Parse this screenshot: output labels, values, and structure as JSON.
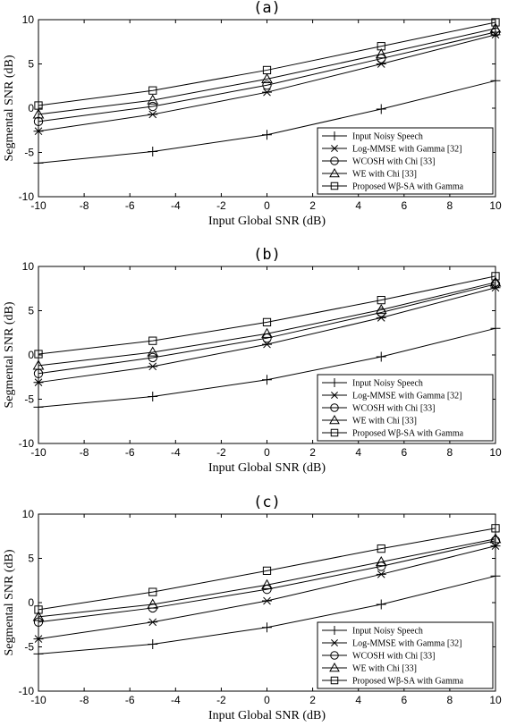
{
  "chart_data": [
    {
      "type": "line",
      "panel": "(a)",
      "title": "(a)",
      "xlabel": "Input Global SNR (dB)",
      "ylabel": "Segmental SNR (dB)",
      "x": [
        -10,
        -5,
        0,
        5,
        10
      ],
      "xlim": [
        -10,
        10
      ],
      "ylim": [
        -10,
        10
      ],
      "xticks": [
        -10,
        -8,
        -6,
        -4,
        -2,
        0,
        2,
        4,
        6,
        8,
        10
      ],
      "yticks": [
        -10,
        -5,
        0,
        5,
        10
      ],
      "legend_position": "bottom-right",
      "series": [
        {
          "name": "Input Noisy Speech",
          "marker": "plus",
          "values": [
            -6.2,
            -4.9,
            -3.0,
            -0.1,
            3.1
          ]
        },
        {
          "name": "Log-MMSE with Gamma [32]",
          "marker": "asterisk",
          "values": [
            -2.6,
            -0.7,
            1.8,
            5.0,
            8.3
          ]
        },
        {
          "name": "WCOSH with Chi [33]",
          "marker": "circle",
          "values": [
            -1.5,
            0.2,
            2.6,
            5.6,
            8.6
          ]
        },
        {
          "name": "WE with Chi [33]",
          "marker": "triangle",
          "values": [
            -0.7,
            0.9,
            3.3,
            6.1,
            9.0
          ]
        },
        {
          "name": "Proposed Wβ-SA with Gamma",
          "marker": "square",
          "values": [
            0.3,
            2.0,
            4.3,
            7.0,
            9.7
          ]
        }
      ]
    },
    {
      "type": "line",
      "panel": "(b)",
      "title": "(b)",
      "xlabel": "Input Global SNR (dB)",
      "ylabel": "Segmental SNR (dB)",
      "x": [
        -10,
        -5,
        0,
        5,
        10
      ],
      "xlim": [
        -10,
        10
      ],
      "ylim": [
        -10,
        10
      ],
      "xticks": [
        -10,
        -8,
        -6,
        -4,
        -2,
        0,
        2,
        4,
        6,
        8,
        10
      ],
      "yticks": [
        -10,
        -5,
        0,
        5,
        10
      ],
      "legend_position": "bottom-right",
      "series": [
        {
          "name": "Input Noisy Speech",
          "marker": "plus",
          "values": [
            -5.9,
            -4.7,
            -2.8,
            -0.2,
            3.0
          ]
        },
        {
          "name": "Log-MMSE with Gamma [32]",
          "marker": "asterisk",
          "values": [
            -3.1,
            -1.3,
            1.2,
            4.2,
            7.6
          ]
        },
        {
          "name": "WCOSH with Chi [33]",
          "marker": "circle",
          "values": [
            -2.1,
            -0.3,
            1.9,
            4.8,
            8.0
          ]
        },
        {
          "name": "WE with Chi [33]",
          "marker": "triangle",
          "values": [
            -1.2,
            0.3,
            2.4,
            5.1,
            8.2
          ]
        },
        {
          "name": "Proposed Wβ-SA with Gamma",
          "marker": "square",
          "values": [
            0.1,
            1.6,
            3.7,
            6.2,
            8.9
          ]
        }
      ]
    },
    {
      "type": "line",
      "panel": "(c)",
      "title": "(c)",
      "xlabel": "Input Global SNR (dB)",
      "ylabel": "Segmental SNR (dB)",
      "x": [
        -10,
        -5,
        0,
        5,
        10
      ],
      "xlim": [
        -10,
        10
      ],
      "ylim": [
        -10,
        10
      ],
      "xticks": [
        -10,
        -8,
        -6,
        -4,
        -2,
        0,
        2,
        4,
        6,
        8,
        10
      ],
      "yticks": [
        -10,
        -5,
        0,
        5,
        10
      ],
      "legend_position": "bottom-right",
      "series": [
        {
          "name": "Input Noisy Speech",
          "marker": "plus",
          "values": [
            -5.8,
            -4.7,
            -2.8,
            -0.2,
            3.0
          ]
        },
        {
          "name": "Log-MMSE with Gamma [32]",
          "marker": "asterisk",
          "values": [
            -4.1,
            -2.2,
            0.2,
            3.2,
            6.4
          ]
        },
        {
          "name": "WCOSH with Chi [33]",
          "marker": "circle",
          "values": [
            -2.2,
            -0.6,
            1.5,
            4.1,
            7.0
          ]
        },
        {
          "name": "WE with Chi [33]",
          "marker": "triangle",
          "values": [
            -1.6,
            -0.2,
            2.0,
            4.6,
            7.2
          ]
        },
        {
          "name": "Proposed Wβ-SA with Gamma",
          "marker": "square",
          "values": [
            -0.8,
            1.2,
            3.6,
            6.1,
            8.4
          ]
        }
      ]
    }
  ]
}
